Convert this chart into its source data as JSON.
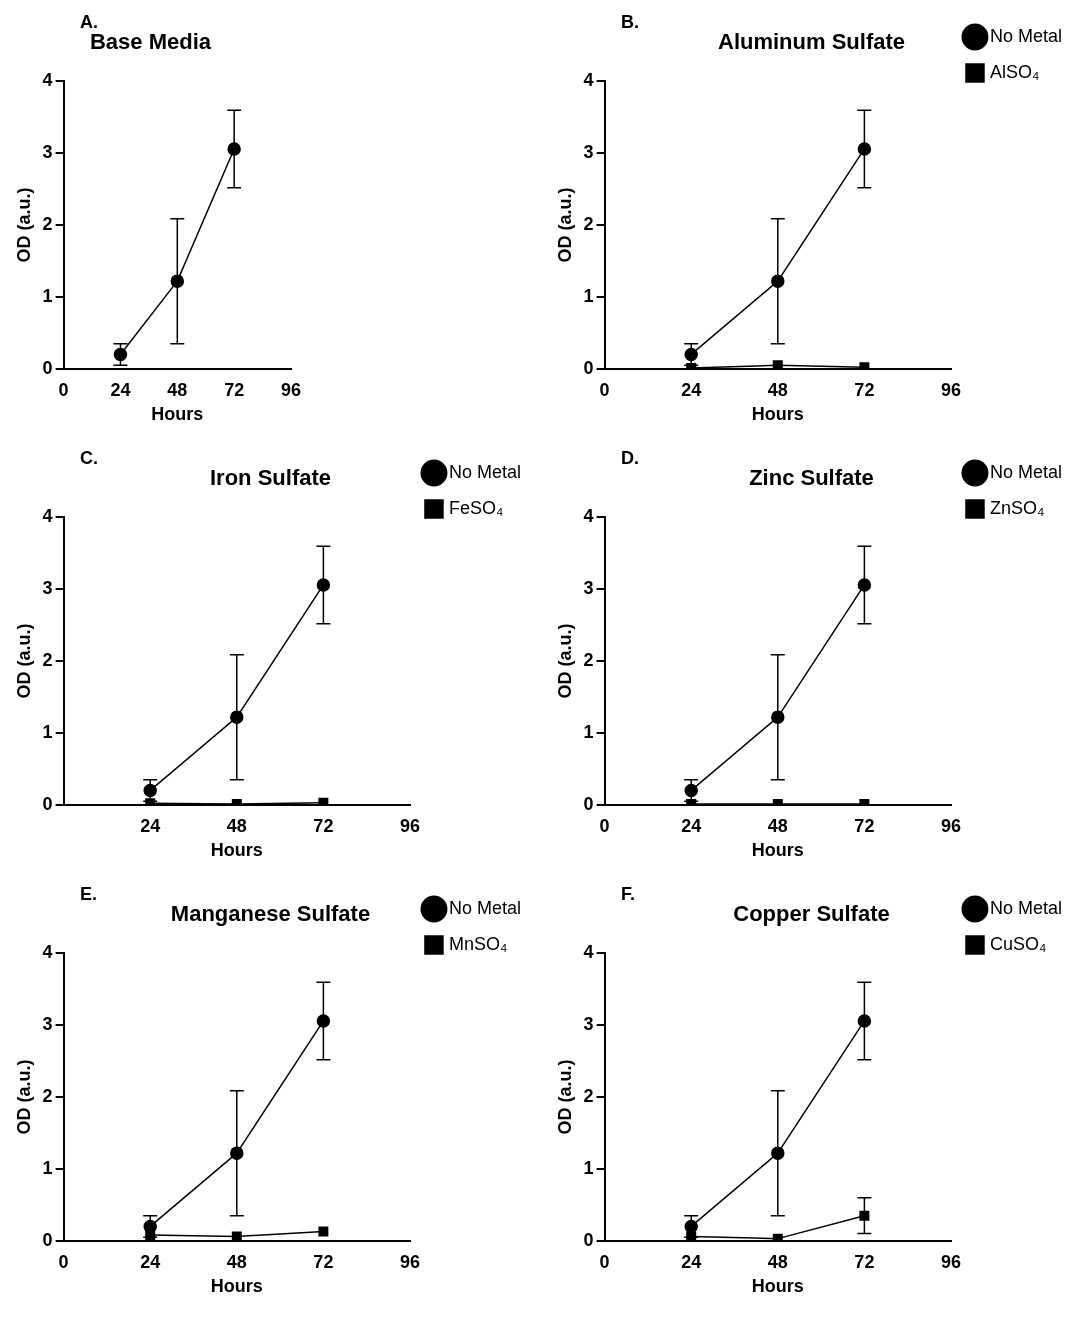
{
  "chart_data": [
    {
      "type": "line",
      "title": "Base Media",
      "annotations": [
        "A."
      ],
      "xlabel": "Hours",
      "ylabel": "OD (a.u.)",
      "x": [
        24,
        48,
        72
      ],
      "xlim": [
        0,
        96
      ],
      "xticks": [
        0,
        24,
        48,
        72,
        96
      ],
      "ylim": [
        0,
        4
      ],
      "yticks": [
        0,
        1,
        2,
        3,
        4
      ],
      "grid": false,
      "legend": false,
      "series": [
        {
          "color": "#000000",
          "marker": "circle",
          "values": [
            0.2,
            1.22,
            3.06
          ],
          "errors": [
            0.15,
            0.87,
            0.54
          ]
        }
      ]
    },
    {
      "type": "line",
      "title": "Aluminum Sulfate",
      "annotations": [
        "B."
      ],
      "xlabel": "Hours",
      "ylabel": "OD (a.u.)",
      "x": [
        24,
        48,
        72
      ],
      "xlim": [
        0,
        96
      ],
      "xticks": [
        0,
        24,
        48,
        72,
        96
      ],
      "ylim": [
        0,
        4
      ],
      "yticks": [
        0,
        1,
        2,
        3,
        4
      ],
      "grid": false,
      "legend": "right",
      "series": [
        {
          "name": "No Metal",
          "color": "#000000",
          "marker": "circle",
          "values": [
            0.2,
            1.22,
            3.06
          ],
          "errors": [
            0.15,
            0.87,
            0.54
          ]
        },
        {
          "name": "AlSO₄",
          "color": "#000000",
          "marker": "square",
          "values": [
            0.01,
            0.05,
            0.02
          ]
        }
      ]
    },
    {
      "type": "line",
      "title": "Iron Sulfate",
      "annotations": [
        "C."
      ],
      "xlabel": "Hours",
      "ylabel": "OD (a.u.)",
      "x": [
        24,
        48,
        72
      ],
      "xlim": [
        0,
        96
      ],
      "xticks": [
        24,
        48,
        72,
        96
      ],
      "ylim": [
        0,
        4
      ],
      "yticks": [
        0,
        1,
        2,
        3,
        4
      ],
      "grid": false,
      "legend": "right",
      "series": [
        {
          "name": "No Metal",
          "color": "#000000",
          "marker": "circle",
          "values": [
            0.2,
            1.22,
            3.06
          ],
          "errors": [
            0.15,
            0.87,
            0.54
          ]
        },
        {
          "name": "FeSO₄",
          "color": "#000000",
          "marker": "square",
          "values": [
            0.02,
            0.01,
            0.03
          ]
        }
      ]
    },
    {
      "type": "line",
      "title": "Zinc Sulfate",
      "annotations": [
        "D."
      ],
      "xlabel": "Hours",
      "ylabel": "OD (a.u.)",
      "x": [
        24,
        48,
        72
      ],
      "xlim": [
        0,
        96
      ],
      "xticks": [
        0,
        24,
        48,
        72,
        96
      ],
      "ylim": [
        0,
        4
      ],
      "yticks": [
        0,
        1,
        2,
        3,
        4
      ],
      "grid": false,
      "legend": "right",
      "series": [
        {
          "name": "No Metal",
          "color": "#000000",
          "marker": "circle",
          "values": [
            0.2,
            1.22,
            3.06
          ],
          "errors": [
            0.15,
            0.87,
            0.54
          ]
        },
        {
          "name": "ZnSO₄",
          "color": "#000000",
          "marker": "square",
          "values": [
            0.01,
            0.01,
            0.01
          ]
        }
      ]
    },
    {
      "type": "line",
      "title": "Manganese Sulfate",
      "annotations": [
        "E."
      ],
      "xlabel": "Hours",
      "ylabel": "OD (a.u.)",
      "x": [
        24,
        48,
        72
      ],
      "xlim": [
        0,
        96
      ],
      "xticks": [
        0,
        24,
        48,
        72,
        96
      ],
      "ylim": [
        0,
        4
      ],
      "yticks": [
        0,
        1,
        2,
        3,
        4
      ],
      "grid": false,
      "legend": "right",
      "series": [
        {
          "name": "No Metal",
          "color": "#000000",
          "marker": "circle",
          "values": [
            0.2,
            1.22,
            3.06
          ],
          "errors": [
            0.15,
            0.87,
            0.54
          ]
        },
        {
          "name": "MnSO₄",
          "color": "#000000",
          "marker": "square",
          "values": [
            0.08,
            0.06,
            0.13
          ]
        }
      ]
    },
    {
      "type": "line",
      "title": "Copper Sulfate",
      "annotations": [
        "F."
      ],
      "xlabel": "Hours",
      "ylabel": "OD (a.u.)",
      "x": [
        24,
        48,
        72
      ],
      "xlim": [
        0,
        96
      ],
      "xticks": [
        0,
        24,
        48,
        72,
        96
      ],
      "ylim": [
        0,
        4
      ],
      "yticks": [
        0,
        1,
        2,
        3,
        4
      ],
      "grid": false,
      "legend": "right",
      "series": [
        {
          "name": "No Metal",
          "color": "#000000",
          "marker": "circle",
          "values": [
            0.2,
            1.22,
            3.06
          ],
          "errors": [
            0.15,
            0.87,
            0.54
          ]
        },
        {
          "name": "CuSO₄",
          "color": "#000000",
          "marker": "square",
          "values": [
            0.06,
            0.03,
            0.35
          ],
          "errors": [
            null,
            null,
            0.25
          ]
        }
      ]
    }
  ]
}
